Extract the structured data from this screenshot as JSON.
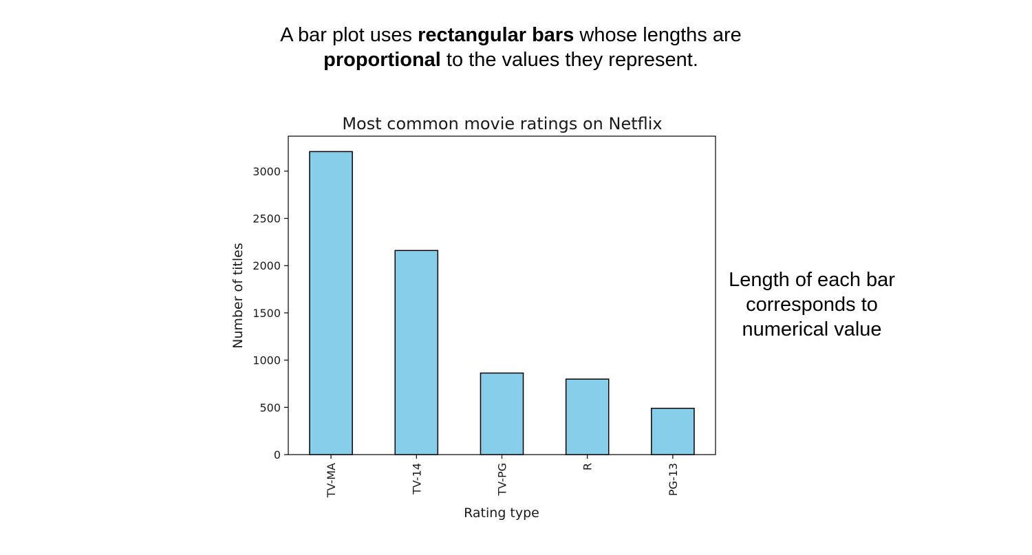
{
  "intro": {
    "part1": "A bar plot uses ",
    "bold1": "rectangular bars",
    "part2": " whose lengths are",
    "bold2": "proportional",
    "part3": " to the values they represent."
  },
  "side_note": {
    "line1": "Length of each bar",
    "line2": "corresponds to",
    "line3": "numerical value"
  },
  "chart_data": {
    "type": "bar",
    "title": "Most common movie ratings on Netflix",
    "xlabel": "Rating type",
    "ylabel": "Number of titles",
    "categories": [
      "TV-MA",
      "TV-14",
      "TV-PG",
      "R",
      "PG-13"
    ],
    "values": [
      3207,
      2160,
      863,
      799,
      490
    ],
    "ylim": [
      0,
      3370
    ],
    "yticks": [
      0,
      500,
      1000,
      1500,
      2000,
      2500,
      3000
    ],
    "bar_color": "#87ceeb",
    "edge_color": "#000000",
    "grid": false,
    "legend": "none"
  }
}
